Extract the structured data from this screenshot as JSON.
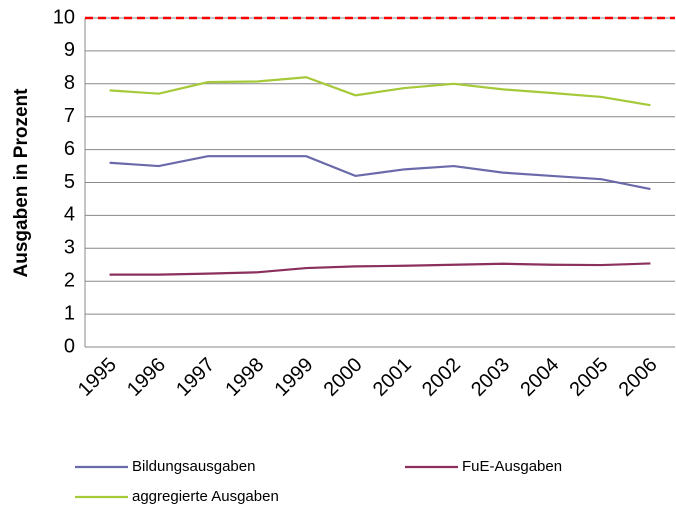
{
  "chart_data": {
    "type": "line",
    "y_label": "Ausgaben in Prozent",
    "categories": [
      "1995",
      "1996",
      "1997",
      "1998",
      "1999",
      "2000",
      "2001",
      "2002",
      "2003",
      "2004",
      "2005",
      "2006"
    ],
    "series": [
      {
        "name": "Bildungsausgaben",
        "color": "#6a6aaa",
        "values": [
          5.6,
          5.5,
          5.8,
          5.8,
          5.8,
          5.2,
          5.4,
          5.5,
          5.3,
          5.2,
          5.1,
          4.8
        ]
      },
      {
        "name": "FuE-Ausgaben",
        "color": "#8b2f5c",
        "values": [
          2.2,
          2.2,
          2.23,
          2.27,
          2.4,
          2.45,
          2.47,
          2.5,
          2.53,
          2.5,
          2.49,
          2.54
        ]
      },
      {
        "name": "aggregierte Ausgaben",
        "color": "#a6c93a",
        "values": [
          7.8,
          7.7,
          8.05,
          8.07,
          8.2,
          7.65,
          7.87,
          8.0,
          7.83,
          7.72,
          7.6,
          7.35
        ]
      }
    ],
    "reference_line": 10,
    "reference_color": "#ff0000",
    "ylim": [
      0,
      10
    ],
    "yticks": [
      0,
      1,
      2,
      3,
      4,
      5,
      6,
      7,
      8,
      9,
      10
    ],
    "grid": true
  }
}
